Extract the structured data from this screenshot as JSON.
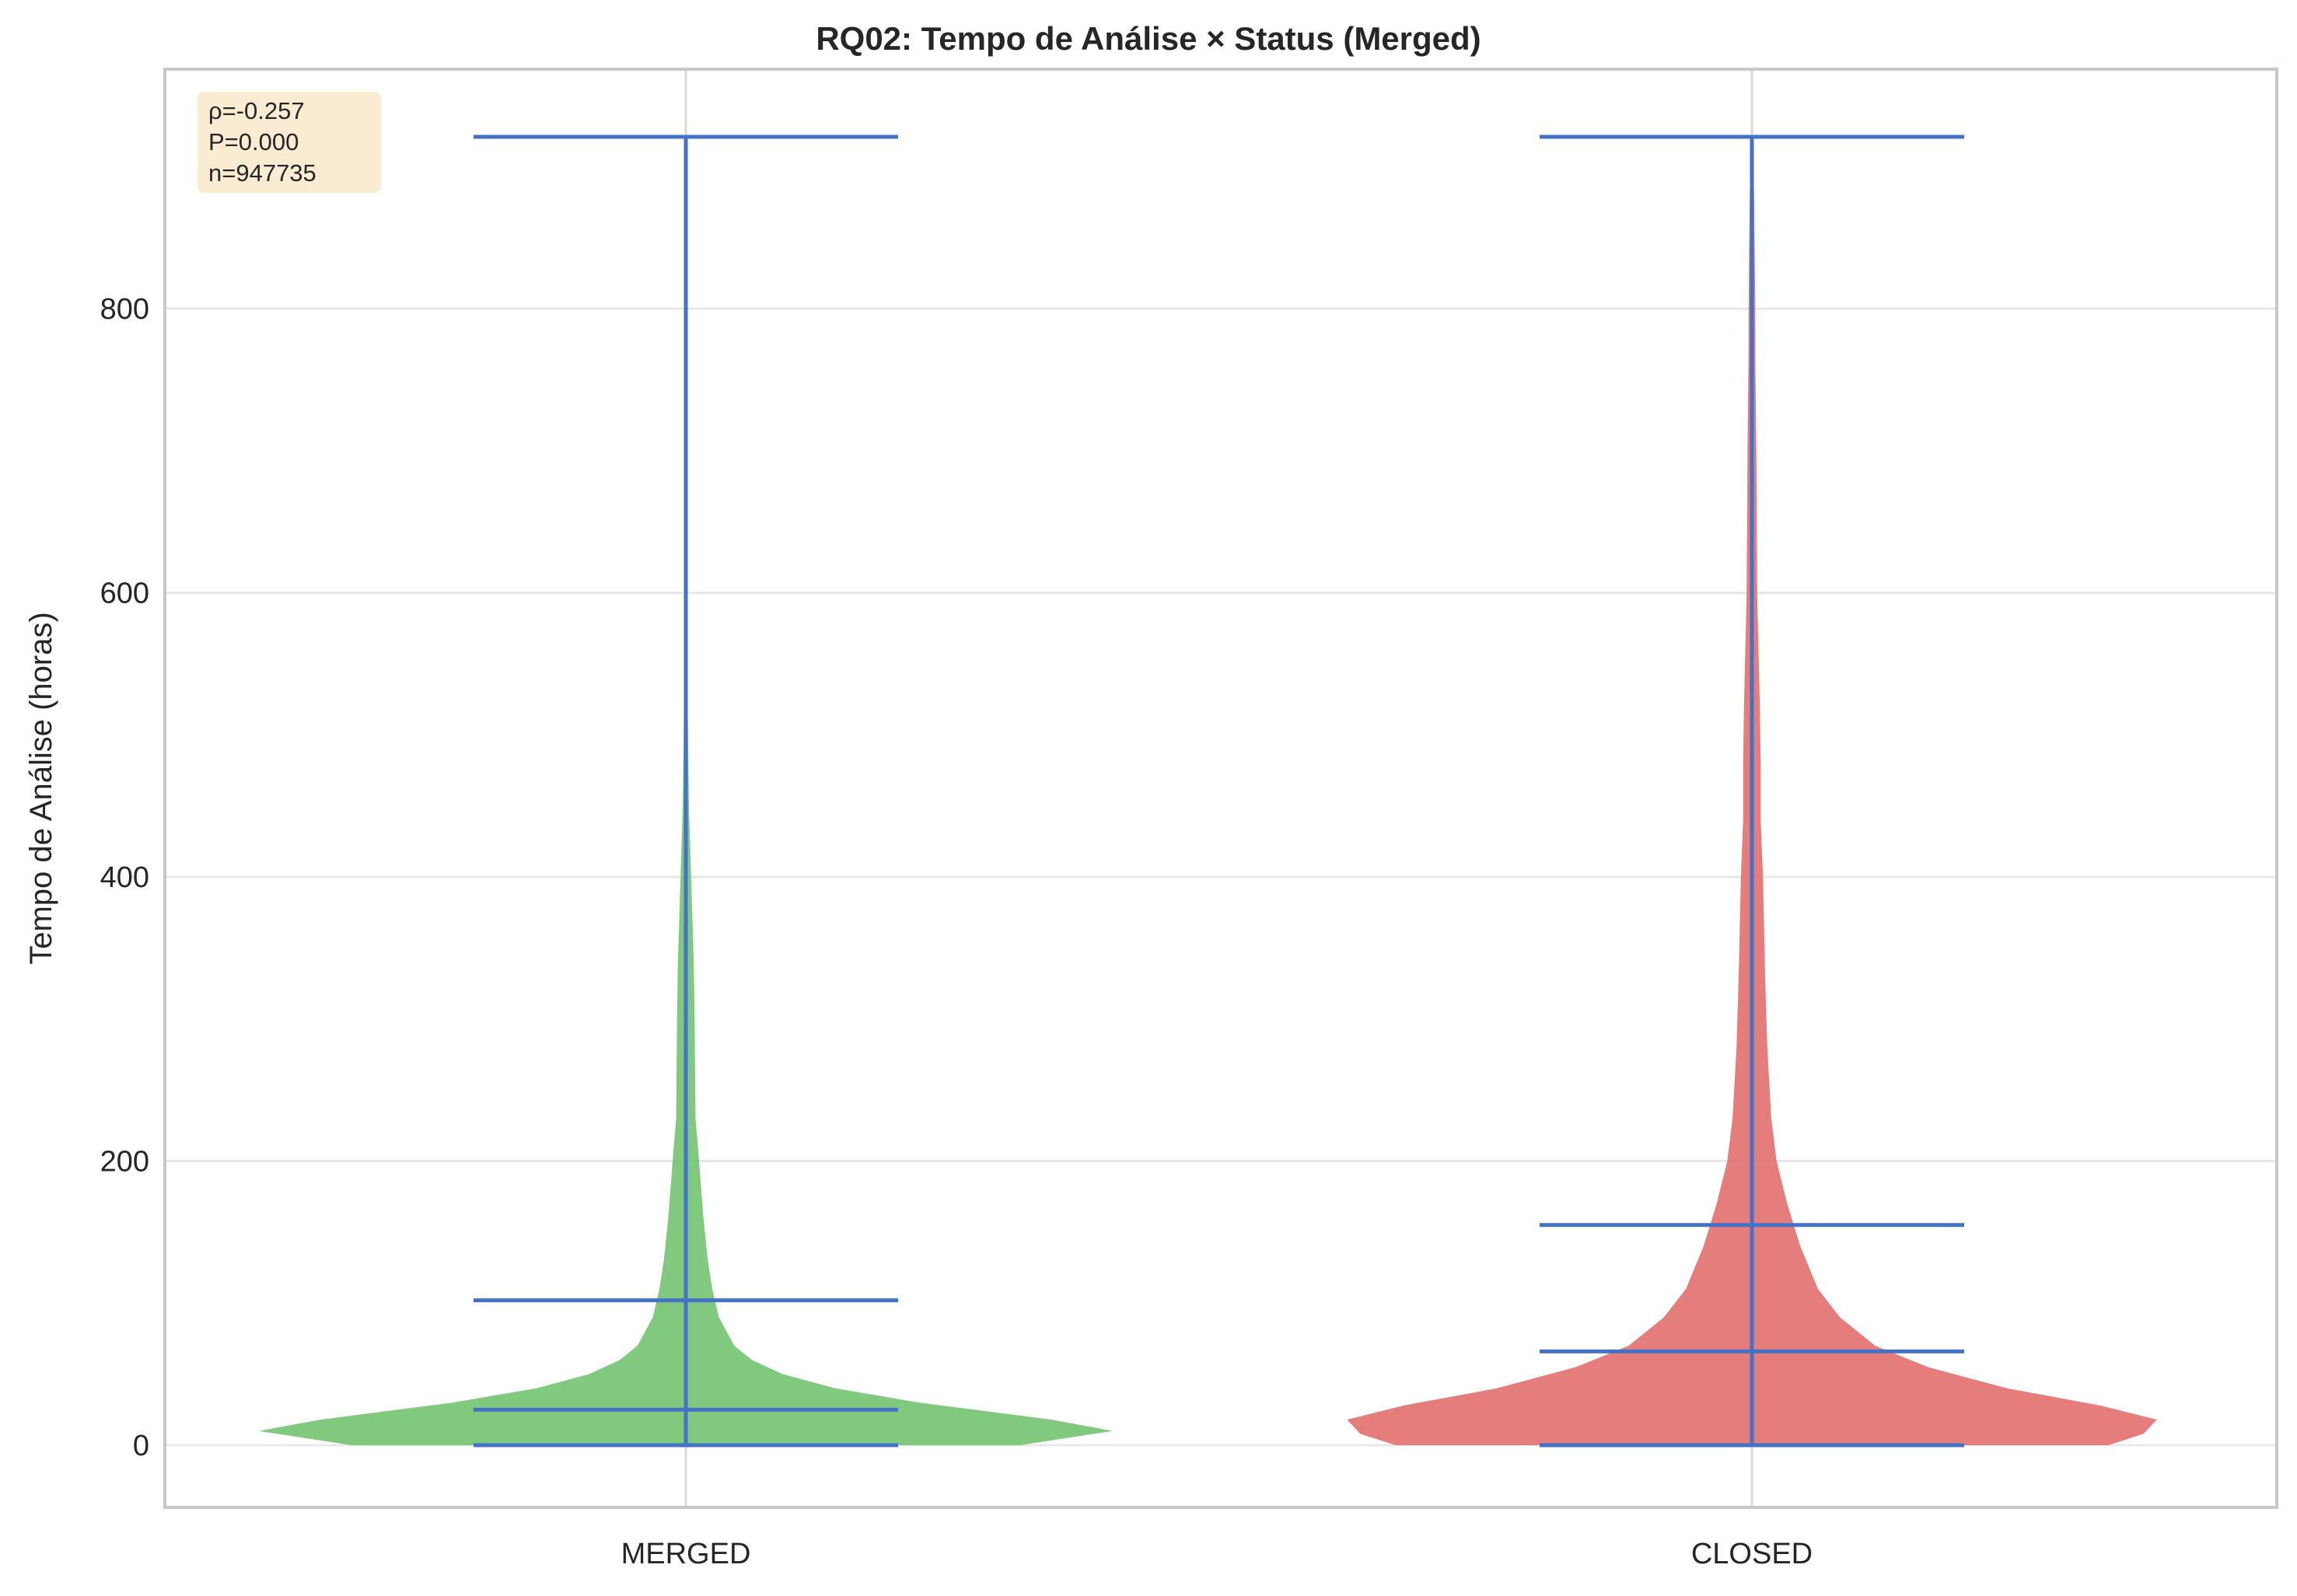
{
  "chart_data": {
    "type": "violin",
    "title": "RQ02: Tempo de Análise × Status (Merged)",
    "xlabel": "",
    "ylabel": "Tempo de Análise (horas)",
    "ylim": [
      -43,
      967
    ],
    "yticks": [
      "0",
      "200",
      "400",
      "600",
      "800"
    ],
    "yticks_values": [
      0,
      200,
      400,
      600,
      800
    ],
    "grid": true,
    "categories": [
      "MERGED",
      "CLOSED"
    ],
    "series": [
      {
        "category": "MERGED",
        "color": "#6abf69",
        "min": 0,
        "q1": 25,
        "median": 102,
        "max": 921,
        "density_profile": [
          [
            0,
            0.76
          ],
          [
            10,
            0.97
          ],
          [
            18,
            0.83
          ],
          [
            30,
            0.53
          ],
          [
            40,
            0.34
          ],
          [
            50,
            0.22
          ],
          [
            60,
            0.15
          ],
          [
            70,
            0.11
          ],
          [
            90,
            0.075
          ],
          [
            110,
            0.06
          ],
          [
            130,
            0.05
          ],
          [
            160,
            0.04
          ],
          [
            200,
            0.03
          ],
          [
            230,
            0.022
          ],
          [
            300,
            0.02
          ],
          [
            340,
            0.018
          ],
          [
            400,
            0.012
          ],
          [
            450,
            0.007
          ],
          [
            500,
            0.005
          ],
          [
            550,
            0.003
          ],
          [
            570,
            0.0
          ]
        ]
      },
      {
        "category": "CLOSED",
        "color": "#e06666",
        "min": 0,
        "q1": 66,
        "median": 155,
        "max": 921,
        "density_profile": [
          [
            0,
            0.81
          ],
          [
            8,
            0.89
          ],
          [
            18,
            0.92
          ],
          [
            28,
            0.79
          ],
          [
            40,
            0.58
          ],
          [
            55,
            0.4
          ],
          [
            70,
            0.28
          ],
          [
            90,
            0.2
          ],
          [
            110,
            0.15
          ],
          [
            140,
            0.11
          ],
          [
            170,
            0.08
          ],
          [
            200,
            0.056
          ],
          [
            230,
            0.044
          ],
          [
            280,
            0.035
          ],
          [
            330,
            0.03
          ],
          [
            360,
            0.028
          ],
          [
            400,
            0.025
          ],
          [
            440,
            0.02
          ],
          [
            480,
            0.02
          ],
          [
            520,
            0.018
          ],
          [
            560,
            0.015
          ],
          [
            600,
            0.012
          ],
          [
            650,
            0.011
          ],
          [
            700,
            0.01
          ],
          [
            760,
            0.008
          ],
          [
            820,
            0.007
          ],
          [
            880,
            0.005
          ],
          [
            921,
            0.002
          ]
        ]
      }
    ],
    "annotation": {
      "lines": [
        "ρ=-0.257",
        "P=0.000",
        "n=947735"
      ],
      "position": "top-left",
      "background": "#f9ecd3"
    },
    "line_color": "#4472c4"
  }
}
